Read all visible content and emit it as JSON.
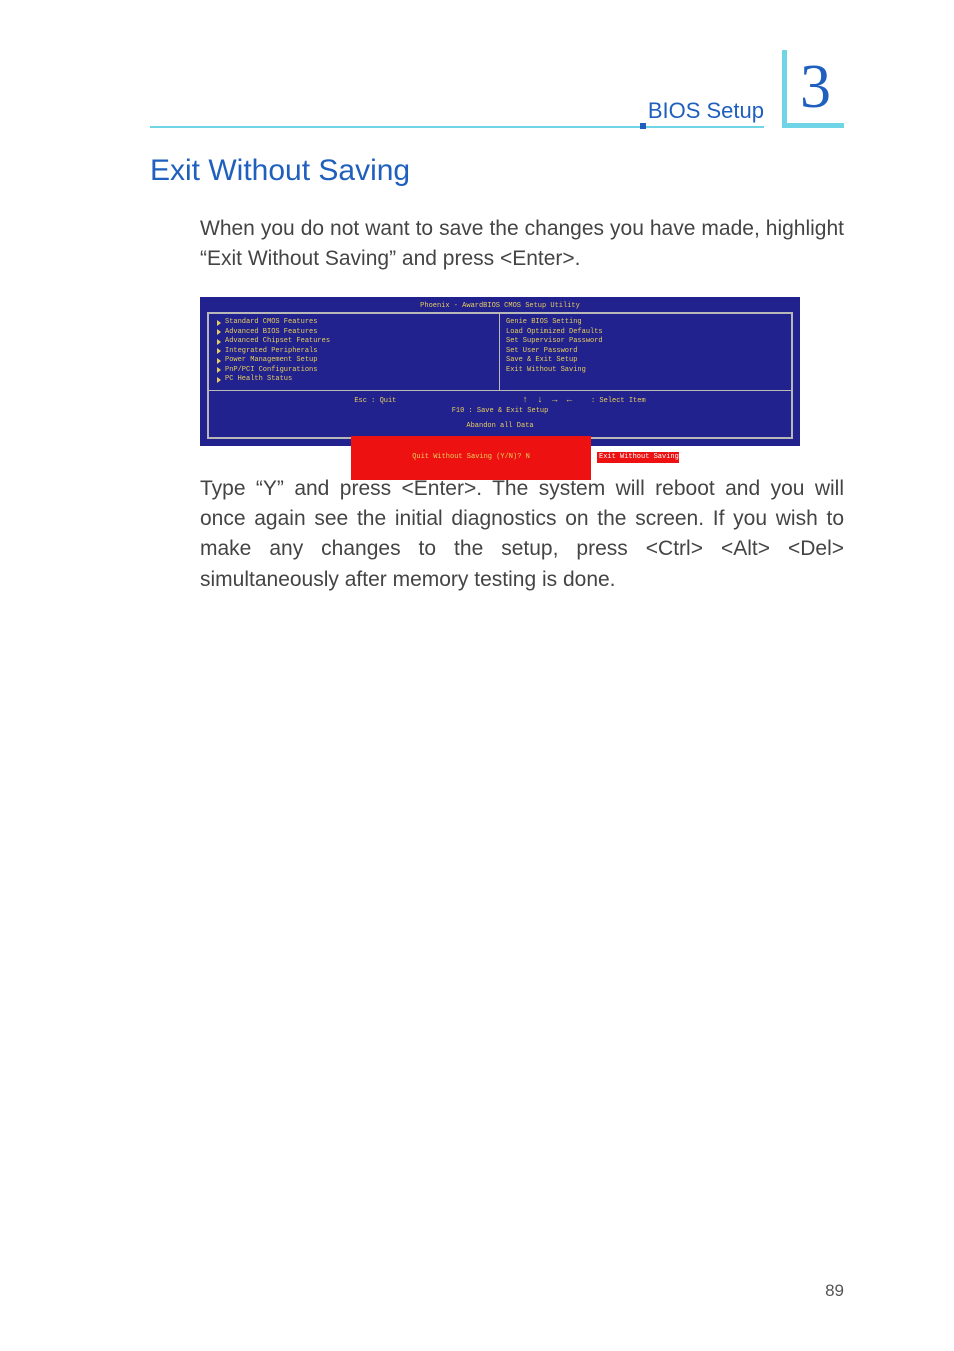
{
  "header": {
    "label": "BIOS Setup",
    "chapter_number": "3"
  },
  "section_title": "Exit Without Saving",
  "paragraph_1": "When you do not want to save the changes you have made, highlight “Exit Without Saving” and press <Enter>.",
  "paragraph_2": "Type “Y” and press <Enter>. The system will reboot and you will once again see the initial diagnostics on the screen. If you wish to make any changes to the setup, press <Ctrl> <Alt> <Del> simultaneously after memory testing is done.",
  "page_number": "89",
  "bios": {
    "title": "Phoenix - AwardBIOS CMOS Setup Utility",
    "background_color": "#22228e",
    "text_color": "#e7ce5b",
    "border_color": "#b8b8b8",
    "highlight_color": "#e11",
    "left_menu": [
      "Standard CMOS Features",
      "Advanced BIOS Features",
      "Advanced Chipset Features",
      "Integrated Peripherals",
      "Power Management Setup",
      "PnP/PCI Configurations",
      "PC Health Status"
    ],
    "right_menu": [
      "Genie BIOS Setting",
      "Load Optimized Defaults",
      "Set Supervisor Password",
      "Set User Password",
      "Save & Exit Setup",
      "Exit Without Saving"
    ],
    "dialog": {
      "line1": "Quit Without Saving (Y/N)? N",
      "line2": ""
    },
    "highlight_label": "Exit Without Saving",
    "keys_line1_left": "Esc : Quit",
    "keys_line1_right": ": Select Item",
    "keys_line2": "F10 : Save & Exit Setup",
    "footer_hint": "Abandon all Data"
  }
}
